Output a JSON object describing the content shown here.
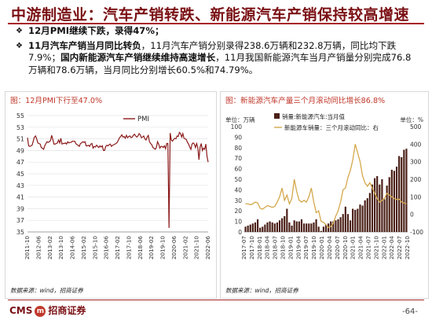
{
  "header": {
    "title": "中游制造业：汽车产销转跌、新能源汽车产销保持较高增速"
  },
  "bullets": [
    {
      "bold": "12月PMI继续下跌，录得47%；",
      "text": ""
    },
    {
      "bold": "11月汽车产销当月同比转负",
      "text": "，11月汽车产销分别录得238.6万辆和232.8万辆，同比均下跌7.9%；",
      "bold2": "国内新能源汽车产销继续维持高速增长",
      "text2": "，11月我国新能源汽车当月产销量分别完成76.8万辆和78.6万辆，当月同比分别增长60.5%和74.79%。"
    }
  ],
  "panels": {
    "left_title": "图：12月PMI下行至47.0%",
    "right_title": "图：新能源汽车产量三个月滚动同比增长86.8%",
    "left_source": "数据来源：wind，招商证券",
    "right_source": "数据来源：wind，招商证券"
  },
  "footer": {
    "brand_left": "CMS",
    "brand_mark": "m",
    "brand_right": "招商证券",
    "page": "-64-"
  },
  "colors": {
    "brand": "#7a1014",
    "pmi_line": "#8b1a1a",
    "bar": "#4a1f16",
    "yoy_line": "#d4a84b"
  },
  "chart_data": [
    {
      "type": "line",
      "title": "图：12月PMI下行至47.0%",
      "x_tick_labels": [
        "2011-10",
        "2012-06",
        "2013-02",
        "2013-10",
        "2014-06",
        "2015-02",
        "2015-10",
        "2016-06",
        "2017-02",
        "2017-10",
        "2018-06",
        "2019-02",
        "2019-10",
        "2020-06",
        "2021-02",
        "2021-10",
        "2022-06"
      ],
      "ylim": [
        35,
        55
      ],
      "y_ticks": [
        35,
        37,
        39,
        41,
        43,
        45,
        47,
        49,
        51,
        53,
        55
      ],
      "grid": true,
      "legend": "top-right",
      "series": [
        {
          "name": "PMI",
          "values": [
            51.2,
            49.8,
            49.7,
            49.8,
            49.9,
            50.6,
            51.3,
            51.5,
            51.0,
            50.3,
            50.2,
            50.1,
            49.5,
            49.4,
            49.2,
            49.8,
            50.2,
            50.5,
            50.4,
            50.5,
            50.7,
            51.6,
            50.9,
            50.1,
            50.1,
            50.2,
            50.3,
            50.8,
            50.3,
            51.1,
            50.1,
            50.2,
            50.2,
            50.3,
            50.1,
            50.5,
            50.3,
            50.4,
            50.4,
            50.6,
            50.6,
            50.6,
            50.2,
            50.0,
            49.9,
            49.7,
            50.2,
            50.3,
            50.5,
            50.4,
            50.5,
            49.8,
            49.8,
            49.9,
            49.7,
            50.1,
            50.2,
            49.4,
            49.7,
            49.6,
            49.9,
            49.7,
            49.5,
            49.8,
            49.6,
            49.8,
            49.0,
            49.0,
            49.7,
            49.9,
            49.8,
            50.0,
            50.1,
            49.7,
            49.9,
            50.0,
            50.1,
            50.2,
            50.4,
            50.8,
            51.2,
            51.4,
            51.7,
            51.3,
            51.4,
            51.1,
            51.6,
            51.2,
            51.4,
            51.5,
            51.2,
            51.3,
            51.6,
            51.8,
            51.5,
            51.3,
            51.5,
            51.9,
            51.7,
            51.2,
            51.3,
            51.5,
            51.0,
            50.8,
            51.3,
            51.6,
            50.5,
            50.2,
            50.0,
            49.5,
            49.4,
            49.2,
            49.5,
            50.5,
            50.1,
            49.4,
            49.7,
            49.7,
            49.5,
            49.8,
            49.3,
            50.2,
            50.2,
            35.7,
            52.0,
            50.8,
            50.6,
            50.9,
            51.1,
            51.0,
            51.5,
            51.4,
            52.1,
            51.9,
            51.3,
            51.9,
            51.1,
            51.0,
            50.9,
            50.4,
            50.1,
            49.6,
            49.2,
            50.1,
            50.3,
            50.1,
            49.5,
            50.2,
            49.5,
            47.4,
            49.6,
            50.2,
            49.0,
            49.4,
            49.2,
            50.1,
            48.0,
            47.0
          ]
        }
      ]
    },
    {
      "type": "bar",
      "title": "图：新能源汽车产量三个月滚动同比增长86.8%",
      "left_axis_label": "单位：万辆",
      "right_axis_label": "单位：%",
      "x_tick_labels": [
        "2017-07",
        "2017-10",
        "2018-01",
        "2018-04",
        "2018-07",
        "2018-10",
        "2019-01",
        "2019-04",
        "2019-07",
        "2019-10",
        "2020-01",
        "2020-04",
        "2020-07",
        "2020-10",
        "2021-01",
        "2021-04",
        "2021-07",
        "2021-10",
        "2022-01",
        "2022-04",
        "2022-07",
        "2022-10"
      ],
      "left_ylim": [
        0,
        100
      ],
      "left_ticks": [
        0,
        10,
        20,
        30,
        40,
        50,
        60,
        70,
        80,
        90,
        100
      ],
      "right_ylim": [
        -100,
        500
      ],
      "right_ticks": [
        -100,
        0,
        100,
        200,
        300,
        400,
        500
      ],
      "legend": "top-right",
      "series": [
        {
          "name": "销量:新能源汽车:当月值",
          "axis": "left",
          "values": [
            5,
            6,
            7,
            8,
            9,
            12,
            4,
            5,
            7,
            9,
            10,
            9,
            8,
            9,
            11,
            13,
            15,
            22,
            9,
            6,
            11,
            10,
            10,
            12,
            8,
            8,
            8,
            8,
            9,
            12,
            5,
            1,
            5,
            7,
            8,
            10,
            10,
            11,
            12,
            14,
            17,
            24,
            17,
            11,
            22,
            21,
            22,
            26,
            25,
            30,
            32,
            37,
            45,
            51,
            53,
            45,
            50,
            31,
            44,
            52,
            59,
            58,
            62,
            72,
            71,
            78,
            79
          ]
        },
        {
          "name": "新能源车销量：三个月滚动同比：右",
          "axis": "right",
          "values": [
            60,
            60,
            55,
            60,
            70,
            65,
            35,
            30,
            40,
            50,
            45,
            40,
            45,
            70,
            100,
            150,
            80,
            110,
            60,
            90,
            200,
            130,
            80,
            70,
            80,
            70,
            100,
            150,
            70,
            10,
            20,
            -40,
            -45,
            -60,
            -75,
            -70,
            -50,
            -10,
            20,
            70,
            140,
            150,
            210,
            250,
            310,
            400,
            350,
            300,
            220,
            180,
            160,
            180,
            150,
            120,
            90,
            70,
            80,
            90,
            120,
            110,
            100,
            90,
            85,
            86.8,
            70,
            65,
            60
          ]
        }
      ]
    }
  ]
}
